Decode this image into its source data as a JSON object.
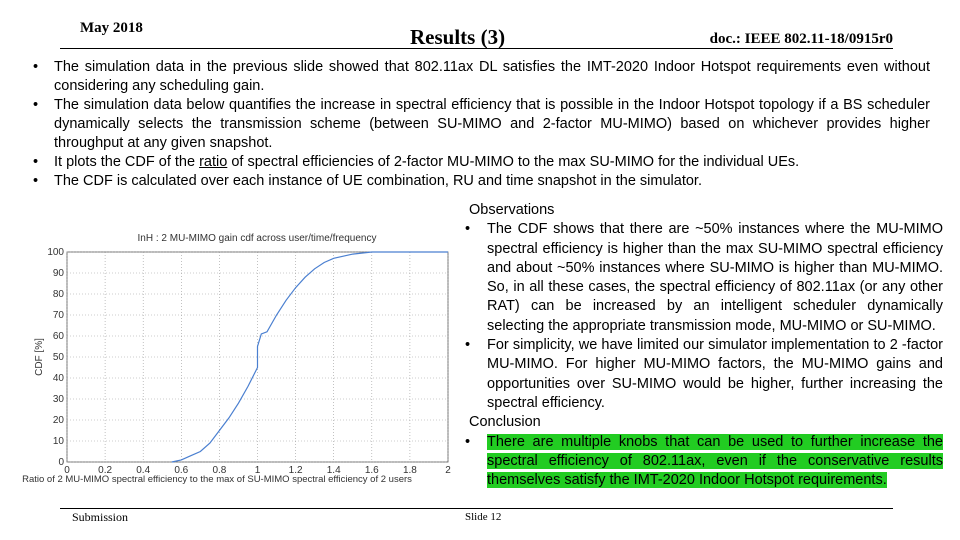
{
  "header": {
    "date": "May 2018",
    "title": "Results (3)",
    "doc": "doc.: IEEE 802.11-18/0915r0"
  },
  "bullets": [
    [
      "The simulation data in the previous slide showed that 802.11ax DL satisfies the IMT-2020 Indoor Hotspot requirements even without considering any scheduling gain."
    ],
    [
      "The simulation data below quantifies the increase in spectral efficiency that is possible in the Indoor Hotspot topology if a BS scheduler dynamically selects the transmission scheme (between SU-MIMO and 2-factor MU-MIMO) based on whichever provides higher throughput at any given snapshot."
    ],
    [
      "It plots the CDF of the ",
      "ratio",
      " of spectral efficiencies of 2-factor MU-MIMO to the max SU-MIMO for the individual UEs."
    ],
    [
      "The CDF is calculated over each instance of UE combination, RU and time snapshot in the simulator."
    ]
  ],
  "observations": {
    "heading": "Observations",
    "items": [
      "The CDF shows that there are ~50% instances where the MU-MIMO spectral efficiency is higher than the max SU-MIMO spectral efficiency and about ~50% instances where SU-MIMO is higher than MU-MIMO. So, in all these cases, the spectral efficiency of 802.11ax (or any other RAT) can be increased by an intelligent scheduler dynamically selecting the appropriate transmission mode, MU-MIMO or SU-MIMO.",
      "For simplicity, we have limited our simulator implementation to 2 -factor MU-MIMO. For higher MU-MIMO factors, the MU-MIMO gains and opportunities over SU-MIMO would be higher, further increasing the spectral efficiency."
    ]
  },
  "conclusion": {
    "heading": "Conclusion",
    "items": [
      "There are multiple knobs that can be used to further increase the spectral efficiency of 802.11ax, even if the conservative results themselves satisfy the IMT-2020 Indoor Hotspot requirements."
    ]
  },
  "footer": {
    "left": "Submission",
    "slide": "Slide 12"
  },
  "chart_data": {
    "type": "line",
    "title": "InH : 2 MU-MIMO gain cdf across user/time/frequency",
    "x_label": "Ratio of 2 MU-MIMO spectral efficiency to the max of SU-MIMO spectral efficiency of 2 users",
    "y_label": "CDF [%]",
    "x": [
      0.55,
      0.6,
      0.65,
      0.7,
      0.75,
      0.8,
      0.85,
      0.9,
      0.95,
      1.0,
      1.0,
      1.02,
      1.05,
      1.1,
      1.15,
      1.2,
      1.25,
      1.3,
      1.35,
      1.4,
      1.5,
      1.6,
      1.8,
      2.0
    ],
    "values": [
      0,
      1,
      3,
      5,
      9,
      15,
      21,
      28,
      36,
      45,
      55,
      61,
      62,
      70,
      77,
      83,
      88,
      92,
      95,
      97,
      99,
      100,
      100,
      100
    ],
    "color": "#4a7fd0",
    "xlim": [
      0,
      2
    ],
    "xticks": [
      0,
      0.2,
      0.4,
      0.6,
      0.8,
      1,
      1.2,
      1.4,
      1.6,
      1.8,
      2
    ],
    "ylim": [
      0,
      100
    ],
    "yticks": [
      0,
      10,
      20,
      30,
      40,
      50,
      60,
      70,
      80,
      90,
      100
    ],
    "grid": true
  }
}
